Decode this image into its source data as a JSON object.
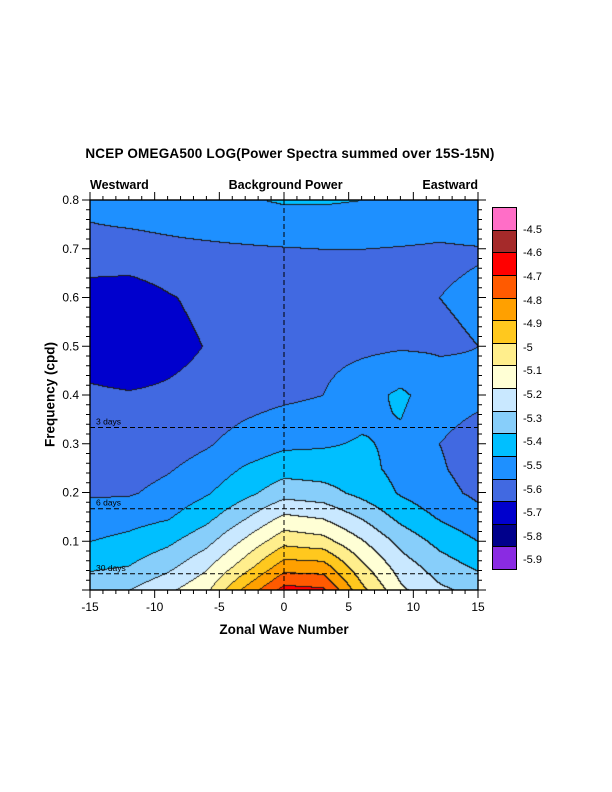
{
  "chart": {
    "title": "NCEP OMEGA500 LOG(Power Spectra summed over 15S-15N)",
    "direction_labels": {
      "west": "Westward",
      "center": "Background Power",
      "east": "Eastward"
    },
    "x_axis": {
      "title": "Zonal Wave Number",
      "tick_labels": [
        "-15",
        "-10",
        "-5",
        "0",
        "5",
        "10",
        "15"
      ],
      "tick_values": [
        -15,
        -10,
        -5,
        0,
        5,
        10,
        15
      ],
      "minor_step": 1,
      "range": [
        -15,
        15
      ]
    },
    "y_axis": {
      "title": "Frequency (cpd)",
      "tick_labels": [
        "0.1",
        "0.2",
        "0.3",
        "0.4",
        "0.5",
        "0.6",
        "0.7",
        "0.8"
      ],
      "tick_values": [
        0.1,
        0.2,
        0.3,
        0.4,
        0.5,
        0.6,
        0.7,
        0.8
      ],
      "minor_step": 0.02,
      "range": [
        0,
        0.8
      ]
    },
    "reference_lines": {
      "vertical_wavenumber": 0,
      "horizontal": [
        {
          "label": "3 days",
          "freq": 0.3333
        },
        {
          "label": "6 days",
          "freq": 0.1667
        },
        {
          "label": "30 days",
          "freq": 0.0333
        }
      ]
    },
    "colorbar": {
      "labels": [
        "-4.5",
        "-4.6",
        "-4.7",
        "-4.8",
        "-4.9",
        "-5",
        "-5.1",
        "-5.2",
        "-5.3",
        "-5.4",
        "-5.5",
        "-5.6",
        "-5.7",
        "-5.8",
        "-5.9"
      ]
    }
  },
  "chart_data": {
    "type": "heatmap",
    "title": "NCEP OMEGA500 LOG(Power Spectra summed over 15S-15N)",
    "xlabel": "Zonal Wave Number",
    "ylabel": "Frequency (cpd)",
    "xlim": [
      -15,
      15
    ],
    "ylim": [
      0,
      0.8
    ],
    "legend_position": "right",
    "grid": false,
    "x": [
      -15,
      -12,
      -9,
      -6,
      -3,
      0,
      3,
      6,
      9,
      12,
      15
    ],
    "y": [
      0,
      0.05,
      0.1,
      0.15,
      0.2,
      0.25,
      0.3,
      0.4,
      0.5,
      0.6,
      0.7,
      0.8
    ],
    "values": [
      [
        -5.33,
        -5.3,
        -5.22,
        -5.12,
        -4.87,
        -4.66,
        -4.68,
        -4.97,
        -5.18,
        -5.28,
        -5.33
      ],
      [
        -5.42,
        -5.4,
        -5.33,
        -5.22,
        -5.05,
        -4.85,
        -4.86,
        -5.08,
        -5.25,
        -5.35,
        -5.42
      ],
      [
        -5.5,
        -5.47,
        -5.42,
        -5.33,
        -5.18,
        -5.03,
        -5.06,
        -5.19,
        -5.33,
        -5.43,
        -5.5
      ],
      [
        -5.56,
        -5.54,
        -5.51,
        -5.43,
        -5.31,
        -5.18,
        -5.21,
        -5.31,
        -5.43,
        -5.51,
        -5.57
      ],
      [
        -5.61,
        -5.61,
        -5.57,
        -5.51,
        -5.43,
        -5.34,
        -5.36,
        -5.43,
        -5.51,
        -5.57,
        -5.62
      ],
      [
        -5.64,
        -5.64,
        -5.61,
        -5.56,
        -5.49,
        -5.44,
        -5.45,
        -5.47,
        -5.53,
        -5.59,
        -5.64
      ],
      [
        -5.66,
        -5.67,
        -5.65,
        -5.61,
        -5.56,
        -5.52,
        -5.51,
        -5.49,
        -5.52,
        -5.6,
        -5.64
      ],
      [
        -5.68,
        -5.69,
        -5.68,
        -5.66,
        -5.64,
        -5.62,
        -5.6,
        -5.54,
        -5.48,
        -5.56,
        -5.58
      ],
      [
        -5.76,
        -5.79,
        -5.74,
        -5.695,
        -5.65,
        -5.63,
        -5.63,
        -5.62,
        -5.61,
        -5.61,
        -5.6
      ],
      [
        -5.755,
        -5.76,
        -5.71,
        -5.67,
        -5.64,
        -5.63,
        -5.62,
        -5.61,
        -5.6,
        -5.6,
        -5.59
      ],
      [
        -5.625,
        -5.63,
        -5.62,
        -5.615,
        -5.61,
        -5.605,
        -5.6,
        -5.6,
        -5.605,
        -5.61,
        -5.605
      ],
      [
        -5.58,
        -5.56,
        -5.55,
        -5.53,
        -5.51,
        -5.49,
        -5.49,
        -5.5,
        -5.52,
        -5.54,
        -5.52
      ]
    ],
    "contour_levels": [
      -5.9,
      -5.8,
      -5.7,
      -5.6,
      -5.5,
      -5.4,
      -5.3,
      -5.2,
      -5.1,
      -5.0,
      -4.9,
      -4.8,
      -4.7,
      -4.6,
      -4.5
    ],
    "fill_colors": [
      "#8A2BE2",
      "#00008B",
      "#0000CD",
      "#4169E1",
      "#1E90FF",
      "#00BFFF",
      "#87CEFA",
      "#C9E8FF",
      "#FFFFD5",
      "#FFEE8C",
      "#FFC81E",
      "#FFA000",
      "#FF5A00",
      "#FF0000",
      "#A52A2A",
      "#FF6EC7"
    ],
    "contour_line_color": "#1A1A1A",
    "reference_line_color": "#000000"
  }
}
